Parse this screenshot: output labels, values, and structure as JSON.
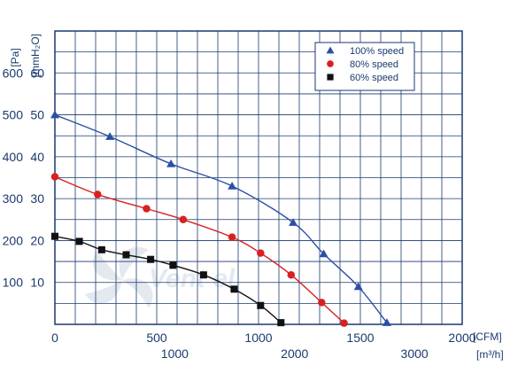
{
  "chart_data": {
    "type": "line",
    "y_units": {
      "primary": "[Pa]",
      "secondary": "[mmH₂O]"
    },
    "x_units": {
      "primary": "[CFM]",
      "secondary": "[m³/h]"
    },
    "xlim": [
      0,
      2000
    ],
    "ylim": [
      0,
      700
    ],
    "x_ticks": [
      "0",
      "500",
      "1000",
      "1500",
      "2000"
    ],
    "x_ticks_secondary": [
      "1000",
      "2000",
      "3000"
    ],
    "y_ticks_pa": [
      "100",
      "200",
      "300",
      "400",
      "500",
      "600"
    ],
    "y_ticks_mmh2o": [
      "10",
      "20",
      "30",
      "40",
      "50",
      "60"
    ],
    "grid": true,
    "legend_position": "top-right",
    "series": [
      {
        "name": "100% speed",
        "color": "#2b4fa3",
        "marker": "triangle",
        "points": [
          [
            0,
            500
          ],
          [
            270,
            448
          ],
          [
            570,
            383
          ],
          [
            870,
            330
          ],
          [
            1170,
            243
          ],
          [
            1320,
            168
          ],
          [
            1490,
            90
          ],
          [
            1630,
            4
          ]
        ]
      },
      {
        "name": "80% speed",
        "color": "#d92020",
        "marker": "circle",
        "points": [
          [
            0,
            352
          ],
          [
            210,
            310
          ],
          [
            450,
            276
          ],
          [
            630,
            250
          ],
          [
            870,
            208
          ],
          [
            1010,
            170
          ],
          [
            1160,
            118
          ],
          [
            1310,
            52
          ],
          [
            1420,
            3
          ]
        ]
      },
      {
        "name": "60% speed",
        "color": "#111111",
        "marker": "square",
        "points": [
          [
            0,
            210
          ],
          [
            120,
            198
          ],
          [
            230,
            178
          ],
          [
            350,
            166
          ],
          [
            470,
            155
          ],
          [
            580,
            141
          ],
          [
            730,
            118
          ],
          [
            880,
            84
          ],
          [
            1010,
            45
          ],
          [
            1110,
            4
          ]
        ]
      }
    ]
  },
  "watermark": {
    "text": "Vent el",
    "icon": "fan-blade-icon"
  }
}
